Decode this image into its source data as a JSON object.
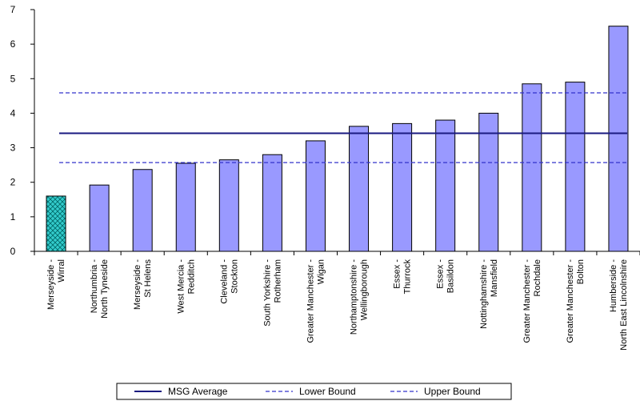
{
  "chart_data": {
    "type": "bar",
    "categories": [
      [
        "Merseyside -",
        "Wirral"
      ],
      [
        "Northumbria -",
        "North Tyneside"
      ],
      [
        "Merseyside -",
        "St Helens"
      ],
      [
        "West Mercia -",
        "Redditch"
      ],
      [
        "Cleveland -",
        "Stockton"
      ],
      [
        "South Yorkshire -",
        "Rotherham"
      ],
      [
        "Greater Manchester -",
        "Wigan"
      ],
      [
        "Northamptonshire -",
        "Wellingborough"
      ],
      [
        "Essex -",
        "Thurrock"
      ],
      [
        "Essex -",
        "Basildon"
      ],
      [
        "Nottinghamshire -",
        "Mansfield"
      ],
      [
        "Greater Manchester -",
        "Rochdale"
      ],
      [
        "Greater Manchester -",
        "Bolton"
      ],
      [
        "Humberside -",
        "North East Lincolnshire"
      ]
    ],
    "values": [
      1.6,
      1.92,
      2.37,
      2.55,
      2.65,
      2.8,
      3.2,
      3.62,
      3.7,
      3.8,
      4.0,
      4.85,
      4.9,
      6.52
    ],
    "highlight_index": 0,
    "ylim": [
      0,
      7
    ],
    "yticks": [
      0,
      1,
      2,
      3,
      4,
      5,
      6,
      7
    ],
    "reference_lines": [
      {
        "name": "MSG Average",
        "value": 3.42,
        "style": "solid",
        "color": "#1a1a80"
      },
      {
        "name": "Lower Bound",
        "value": 2.57,
        "style": "dashed",
        "color": "#3333cc"
      },
      {
        "name": "Upper Bound",
        "value": 4.59,
        "style": "dashed",
        "color": "#3333cc"
      }
    ],
    "title": "",
    "xlabel": "",
    "ylabel": "",
    "grid": false,
    "legend": "bottom-center",
    "colors": {
      "bar": "#9999ff",
      "highlight_bar": "#33cccc",
      "bar_stroke": "#000000"
    }
  }
}
